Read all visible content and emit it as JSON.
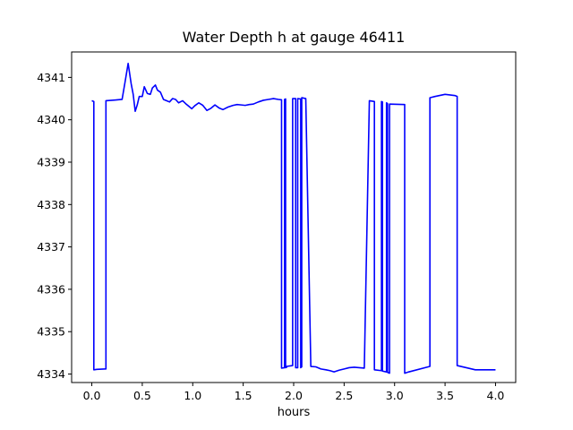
{
  "chart_data": {
    "type": "line",
    "title": "Water Depth h at gauge 46411",
    "xlabel": "hours",
    "ylabel": "",
    "xlim": [
      -0.2,
      4.2
    ],
    "ylim": [
      4333.8,
      4341.6
    ],
    "xticks": [
      0.0,
      0.5,
      1.0,
      1.5,
      2.0,
      2.5,
      3.0,
      3.5,
      4.0
    ],
    "xtick_labels": [
      "0.0",
      "0.5",
      "1.0",
      "1.5",
      "2.0",
      "2.5",
      "3.0",
      "3.5",
      "4.0"
    ],
    "yticks": [
      4334,
      4335,
      4336,
      4337,
      4338,
      4339,
      4340,
      4341
    ],
    "ytick_labels": [
      "4334",
      "4335",
      "4336",
      "4337",
      "4338",
      "4339",
      "4340",
      "4341"
    ],
    "grid": false,
    "series": [
      {
        "color": "#0000ff",
        "x": [
          0.0,
          0.02,
          0.02,
          0.05,
          0.14,
          0.14,
          0.2,
          0.3,
          0.33,
          0.36,
          0.39,
          0.41,
          0.43,
          0.45,
          0.47,
          0.5,
          0.52,
          0.55,
          0.58,
          0.6,
          0.63,
          0.65,
          0.68,
          0.71,
          0.74,
          0.77,
          0.8,
          0.83,
          0.86,
          0.9,
          0.93,
          0.96,
          0.99,
          1.02,
          1.06,
          1.1,
          1.14,
          1.18,
          1.22,
          1.26,
          1.3,
          1.35,
          1.4,
          1.44,
          1.48,
          1.52,
          1.56,
          1.6,
          1.65,
          1.7,
          1.75,
          1.8,
          1.85,
          1.88,
          1.88,
          1.91,
          1.91,
          1.92,
          1.92,
          1.93,
          1.93,
          1.99,
          1.99,
          2.02,
          2.02,
          2.04,
          2.04,
          2.07,
          2.07,
          2.08,
          2.08,
          2.12,
          2.17,
          2.22,
          2.27,
          2.32,
          2.36,
          2.4,
          2.45,
          2.5,
          2.55,
          2.6,
          2.65,
          2.7,
          2.75,
          2.8,
          2.8,
          2.87,
          2.87,
          2.88,
          2.88,
          2.92,
          2.92,
          2.93,
          2.93,
          2.95,
          2.95,
          3.1,
          3.1,
          3.14,
          3.35,
          3.35,
          3.4,
          3.5,
          3.6,
          3.62,
          3.62,
          3.8,
          4.0
        ],
        "y": [
          4340.45,
          4340.43,
          4334.1,
          4334.11,
          4334.12,
          4340.45,
          4340.46,
          4340.48,
          4340.9,
          4341.33,
          4340.85,
          4340.6,
          4340.2,
          4340.35,
          4340.55,
          4340.55,
          4340.78,
          4340.62,
          4340.6,
          4340.75,
          4340.82,
          4340.7,
          4340.65,
          4340.48,
          4340.45,
          4340.42,
          4340.5,
          4340.48,
          4340.4,
          4340.45,
          4340.38,
          4340.32,
          4340.26,
          4340.33,
          4340.4,
          4340.34,
          4340.22,
          4340.27,
          4340.35,
          4340.28,
          4340.24,
          4340.3,
          4340.34,
          4340.36,
          4340.35,
          4340.34,
          4340.36,
          4340.37,
          4340.42,
          4340.46,
          4340.48,
          4340.5,
          4340.48,
          4340.47,
          4334.14,
          4334.15,
          4340.48,
          4340.49,
          4334.15,
          4334.16,
          4334.18,
          4334.2,
          4340.5,
          4340.5,
          4334.15,
          4334.15,
          4340.5,
          4340.49,
          4334.15,
          4334.17,
          4340.52,
          4340.5,
          4334.18,
          4334.17,
          4334.12,
          4334.1,
          4334.08,
          4334.05,
          4334.09,
          4334.12,
          4334.15,
          4334.16,
          4334.15,
          4334.14,
          4340.45,
          4340.43,
          4334.1,
          4334.08,
          4340.43,
          4340.42,
          4334.07,
          4334.05,
          4340.4,
          4340.38,
          4334.04,
          4334.02,
          4340.37,
          4340.36,
          4334.02,
          4334.05,
          4334.18,
          4340.52,
          4340.55,
          4340.6,
          4340.57,
          4340.55,
          4334.2,
          4334.1,
          4334.1
        ]
      }
    ]
  }
}
